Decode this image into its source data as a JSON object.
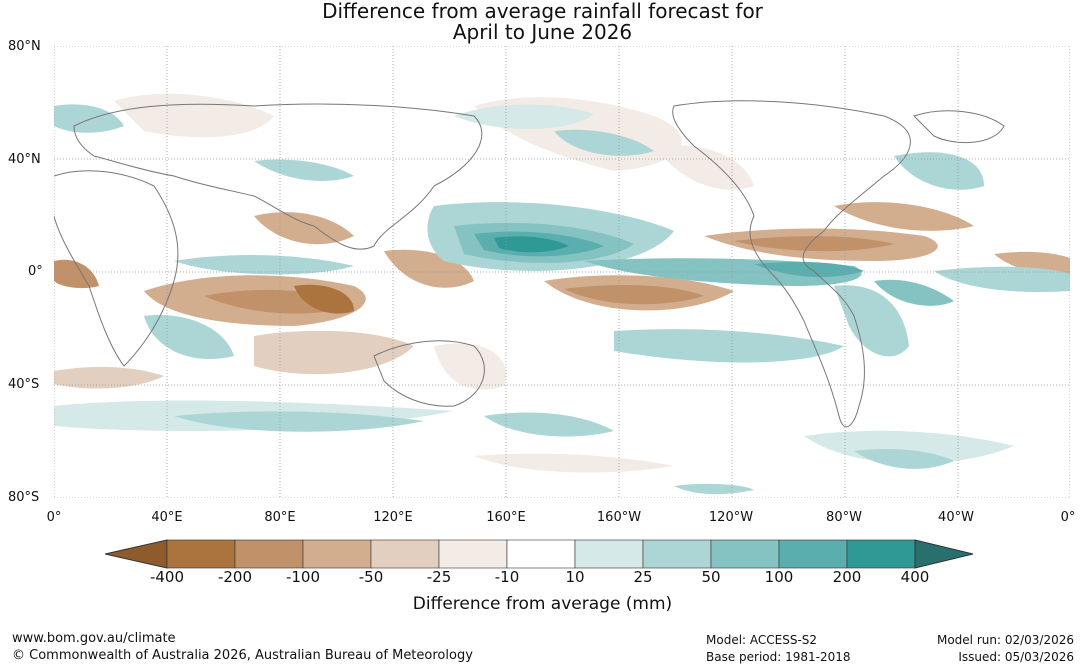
{
  "title": {
    "line1": "Difference from average rainfall forecast for",
    "line2": "April to June 2026"
  },
  "lat_labels": [
    "80°N",
    "40°N",
    "0°",
    "40°S",
    "80°S"
  ],
  "lon_labels": [
    "0°",
    "40°E",
    "80°E",
    "120°E",
    "160°E",
    "160°W",
    "120°W",
    "80°W",
    "40°W",
    "0°"
  ],
  "colorbar": {
    "ticks": [
      "-400",
      "-200",
      "-100",
      "-50",
      "-25",
      "-10",
      "10",
      "25",
      "50",
      "100",
      "200",
      "400"
    ],
    "colors": [
      "#8f5a2c",
      "#ab733e",
      "#c1916a",
      "#d2ae8f",
      "#e3cfbf",
      "#f2ebe6",
      "#ffffff",
      "#d4e9e8",
      "#acd6d5",
      "#84c3c2",
      "#5aaeae",
      "#2f9995",
      "#27706e"
    ],
    "label": "Difference from average (mm)"
  },
  "footer": {
    "url": "www.bom.gov.au/climate",
    "copyright": "© Commonwealth of Australia 2026, Australian Bureau of Meteorology",
    "model": "Model: ACCESS-S2",
    "base_period": "Base period: 1981-2018",
    "model_run": "Model run: 02/03/2026",
    "issued": "Issued: 05/03/2026"
  }
}
